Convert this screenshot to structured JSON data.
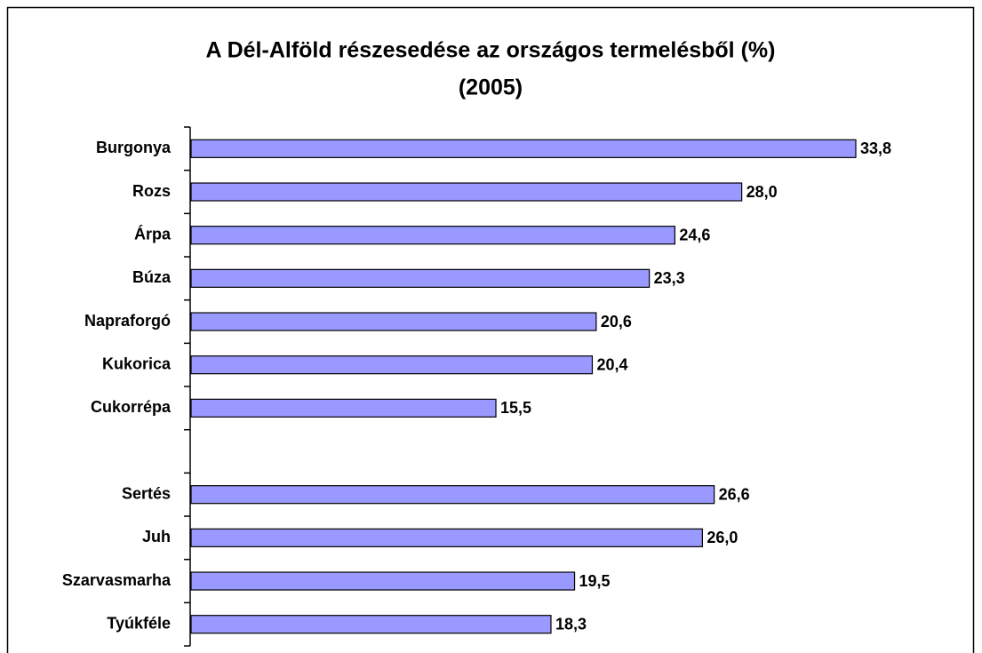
{
  "chart_data": {
    "type": "bar",
    "orientation": "horizontal",
    "title": "A Dél-Alföld részesedése az országos termelésből (%)",
    "subtitle": "(2005)",
    "categories": [
      "Burgonya",
      "Rozs",
      "Árpa",
      "Búza",
      "Napraforgó",
      "Kukorica",
      "Cukorrépa",
      null,
      "Sertés",
      "Juh",
      "Szarvasmarha",
      "Tyúkféle"
    ],
    "values": [
      33.8,
      28.0,
      24.6,
      23.3,
      20.6,
      20.4,
      15.5,
      null,
      26.6,
      26.0,
      19.5,
      18.3
    ],
    "value_labels": [
      "33,8",
      "28,0",
      "24,6",
      "23,3",
      "20,6",
      "20,4",
      "15,5",
      null,
      "26,6",
      "26,0",
      "19,5",
      "18,3"
    ],
    "color": "#9999ff"
  }
}
